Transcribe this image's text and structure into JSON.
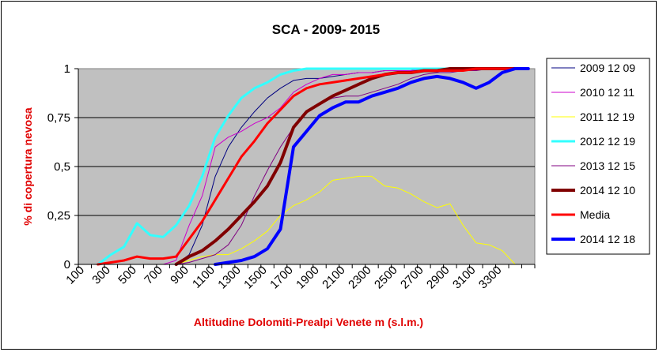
{
  "chart_data": {
    "type": "line",
    "title": "SCA - 2009- 2015",
    "xlabel": "Altitudine Dolomiti-Prealpi Venete m (s.l.m.)",
    "ylabel": "% di copertura nevosa",
    "x": [
      100,
      200,
      300,
      400,
      500,
      600,
      700,
      800,
      900,
      1000,
      1100,
      1200,
      1300,
      1400,
      1500,
      1600,
      1700,
      1800,
      1900,
      2000,
      2100,
      2200,
      2300,
      2400,
      2500,
      2600,
      2700,
      2800,
      2900,
      3000,
      3100,
      3200,
      3300,
      3400,
      3500
    ],
    "xtick_labels": [
      "100",
      "300",
      "500",
      "700",
      "900",
      "1100",
      "1300",
      "1500",
      "1700",
      "1900",
      "2100",
      "2300",
      "2500",
      "2700",
      "2900",
      "3100",
      "3300"
    ],
    "ytick_labels": [
      "0",
      "0,25",
      "0,5",
      "0,75",
      "1"
    ],
    "ylim": [
      0,
      1
    ],
    "grid": "horizontal",
    "legend_position": "right",
    "plot_background": "#c0c0c0",
    "series": [
      {
        "name": "2009 12 09",
        "color": "#000080",
        "width": 1,
        "values": [
          null,
          null,
          null,
          null,
          null,
          null,
          0,
          0,
          0.05,
          0.2,
          0.45,
          0.6,
          0.7,
          0.78,
          0.85,
          0.9,
          0.94,
          0.95,
          0.95,
          0.96,
          0.97,
          0.98,
          0.98,
          0.99,
          0.99,
          0.99,
          1,
          1,
          1,
          1,
          1,
          1,
          1,
          1,
          null
        ]
      },
      {
        "name": "2010 12 11",
        "color": "#cc00cc",
        "width": 1,
        "values": [
          null,
          null,
          null,
          null,
          null,
          null,
          0,
          0.02,
          0.2,
          0.35,
          0.6,
          0.65,
          0.68,
          0.72,
          0.75,
          0.8,
          0.88,
          0.92,
          0.95,
          0.97,
          0.97,
          0.98,
          0.98,
          0.99,
          0.99,
          0.99,
          1,
          1,
          1,
          1,
          1,
          1,
          1,
          1,
          null
        ]
      },
      {
        "name": "2011 12 19",
        "color": "#ffff00",
        "width": 1,
        "values": [
          null,
          null,
          null,
          null,
          null,
          null,
          null,
          0,
          0.02,
          0.04,
          0.05,
          0.05,
          0.08,
          0.12,
          0.17,
          0.25,
          0.3,
          0.33,
          0.37,
          0.43,
          0.44,
          0.45,
          0.45,
          0.4,
          0.39,
          0.36,
          0.32,
          0.29,
          0.31,
          0.2,
          0.11,
          0.1,
          0.07,
          0,
          null
        ]
      },
      {
        "name": "2012 12 19",
        "color": "#33ffff",
        "width": 3,
        "values": [
          null,
          0,
          0.05,
          0.09,
          0.21,
          0.15,
          0.14,
          0.2,
          0.3,
          0.45,
          0.65,
          0.76,
          0.85,
          0.9,
          0.93,
          0.97,
          0.99,
          1,
          1,
          1,
          1,
          1,
          1,
          1,
          1,
          1,
          1,
          1,
          1,
          1,
          1,
          1,
          1,
          1,
          null
        ]
      },
      {
        "name": "2013 12 15",
        "color": "#800080",
        "width": 1,
        "values": [
          null,
          null,
          null,
          null,
          null,
          null,
          null,
          0,
          0.01,
          0.03,
          0.05,
          0.1,
          0.2,
          0.35,
          0.48,
          0.6,
          0.7,
          0.78,
          0.82,
          0.85,
          0.86,
          0.86,
          0.88,
          0.9,
          0.92,
          0.95,
          0.97,
          0.98,
          0.98,
          0.99,
          0.99,
          1,
          1,
          1,
          null
        ]
      },
      {
        "name": "2014 12 10",
        "color": "#800000",
        "width": 4,
        "values": [
          null,
          null,
          null,
          null,
          null,
          null,
          null,
          0,
          0.04,
          0.07,
          0.12,
          0.18,
          0.25,
          0.32,
          0.4,
          0.52,
          0.7,
          0.78,
          0.82,
          0.86,
          0.89,
          0.92,
          0.95,
          0.97,
          0.98,
          0.98,
          0.99,
          0.99,
          1,
          1,
          1,
          1,
          1,
          1,
          null
        ]
      },
      {
        "name": "Media",
        "color": "#ff0000",
        "width": 3,
        "values": [
          null,
          0,
          0.01,
          0.02,
          0.04,
          0.03,
          0.03,
          0.04,
          0.13,
          0.22,
          0.33,
          0.44,
          0.55,
          0.63,
          0.72,
          0.79,
          0.86,
          0.9,
          0.92,
          0.93,
          0.94,
          0.95,
          0.96,
          0.97,
          0.98,
          0.98,
          0.99,
          0.99,
          0.99,
          0.99,
          1,
          1,
          1,
          1,
          null
        ]
      },
      {
        "name": "2014 12 18",
        "color": "#0000ff",
        "width": 4,
        "values": [
          null,
          null,
          null,
          null,
          null,
          null,
          null,
          null,
          null,
          null,
          0,
          0.01,
          0.02,
          0.04,
          0.08,
          0.18,
          0.6,
          0.68,
          0.76,
          0.8,
          0.83,
          0.83,
          0.86,
          0.88,
          0.9,
          0.93,
          0.95,
          0.96,
          0.95,
          0.93,
          0.9,
          0.93,
          0.98,
          1,
          1
        ]
      }
    ]
  }
}
